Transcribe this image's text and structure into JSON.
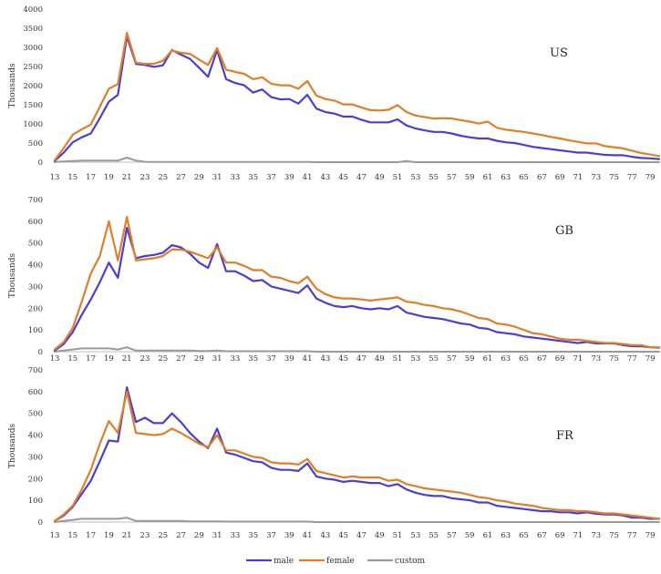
{
  "colors": {
    "male": "#4b3fcf",
    "female": "#e07f28",
    "custom": "#9a9a9a",
    "axis": "#bdbdbd"
  },
  "legend": {
    "placement": "bottom-center",
    "items": [
      {
        "key": "male",
        "label": "male"
      },
      {
        "key": "female",
        "label": "female"
      },
      {
        "key": "custom",
        "label": "custom"
      }
    ]
  },
  "chart_data": [
    {
      "type": "line",
      "panel_label": "US",
      "ylabel": "Thousands",
      "ylim": [
        0,
        4000
      ],
      "yticks": [
        0,
        500,
        1000,
        1500,
        2000,
        2500,
        3000,
        3500,
        4000
      ],
      "x": [
        13,
        14,
        15,
        16,
        17,
        18,
        19,
        20,
        21,
        22,
        23,
        24,
        25,
        26,
        27,
        28,
        29,
        30,
        31,
        32,
        33,
        34,
        35,
        36,
        37,
        38,
        39,
        40,
        41,
        42,
        43,
        44,
        45,
        46,
        47,
        48,
        49,
        50,
        51,
        52,
        53,
        54,
        55,
        56,
        57,
        58,
        59,
        60,
        61,
        62,
        63,
        64,
        65,
        66,
        67,
        68,
        69,
        70,
        71,
        72,
        73,
        74,
        75,
        76,
        77,
        78,
        79,
        80
      ],
      "xticklabels": [
        "13",
        "15",
        "17",
        "19",
        "21",
        "23",
        "25",
        "27",
        "29",
        "31",
        "33",
        "35",
        "37",
        "39",
        "41",
        "43",
        "45",
        "47",
        "49",
        "51",
        "53",
        "55",
        "57",
        "59",
        "61",
        "63",
        "65",
        "67",
        "69",
        "71",
        "73",
        "75",
        "77",
        "79"
      ],
      "series": [
        {
          "name": "male",
          "values": [
            30,
            250,
            520,
            650,
            750,
            1150,
            1580,
            1760,
            3280,
            2570,
            2540,
            2490,
            2530,
            2930,
            2810,
            2700,
            2470,
            2230,
            2930,
            2170,
            2070,
            2010,
            1820,
            1900,
            1700,
            1640,
            1650,
            1530,
            1760,
            1400,
            1310,
            1270,
            1190,
            1190,
            1110,
            1040,
            1040,
            1040,
            1120,
            960,
            880,
            830,
            790,
            790,
            750,
            690,
            650,
            620,
            620,
            560,
            520,
            500,
            450,
            400,
            370,
            340,
            310,
            280,
            250,
            250,
            220,
            190,
            180,
            180,
            140,
            110,
            100,
            80
          ]
        },
        {
          "name": "female",
          "values": [
            50,
            370,
            720,
            860,
            980,
            1450,
            1920,
            2040,
            3380,
            2600,
            2570,
            2570,
            2650,
            2920,
            2860,
            2830,
            2680,
            2540,
            2980,
            2420,
            2360,
            2310,
            2170,
            2220,
            2050,
            2010,
            2010,
            1920,
            2120,
            1740,
            1650,
            1610,
            1510,
            1510,
            1430,
            1360,
            1350,
            1370,
            1490,
            1310,
            1220,
            1180,
            1140,
            1150,
            1140,
            1100,
            1060,
            1010,
            1060,
            900,
            850,
            820,
            790,
            750,
            710,
            660,
            620,
            570,
            530,
            490,
            490,
            420,
            390,
            360,
            300,
            240,
            200,
            160
          ]
        },
        {
          "name": "custom",
          "values": [
            5,
            20,
            30,
            40,
            40,
            40,
            40,
            40,
            120,
            40,
            10,
            5,
            5,
            5,
            5,
            5,
            5,
            5,
            5,
            5,
            5,
            5,
            5,
            5,
            5,
            5,
            5,
            5,
            5,
            0,
            0,
            0,
            0,
            0,
            0,
            0,
            0,
            0,
            0,
            30,
            0,
            0,
            0,
            0,
            0,
            0,
            0,
            0,
            0,
            0,
            0,
            0,
            0,
            0,
            0,
            0,
            0,
            0,
            0,
            0,
            0,
            0,
            0,
            0,
            0,
            0,
            0,
            0
          ]
        }
      ]
    },
    {
      "type": "line",
      "panel_label": "GB",
      "ylabel": "Thousands",
      "ylim": [
        0,
        700
      ],
      "yticks": [
        0,
        100,
        200,
        300,
        400,
        500,
        600,
        700
      ],
      "x": [
        13,
        14,
        15,
        16,
        17,
        18,
        19,
        20,
        21,
        22,
        23,
        24,
        25,
        26,
        27,
        28,
        29,
        30,
        31,
        32,
        33,
        34,
        35,
        36,
        37,
        38,
        39,
        40,
        41,
        42,
        43,
        44,
        45,
        46,
        47,
        48,
        49,
        50,
        51,
        52,
        53,
        54,
        55,
        56,
        57,
        58,
        59,
        60,
        61,
        62,
        63,
        64,
        65,
        66,
        67,
        68,
        69,
        70,
        71,
        72,
        73,
        74,
        75,
        76,
        77,
        78,
        79,
        80
      ],
      "xticklabels": [
        "13",
        "15",
        "17",
        "19",
        "21",
        "23",
        "25",
        "27",
        "29",
        "31",
        "33",
        "35",
        "37",
        "39",
        "41",
        "43",
        "45",
        "47",
        "49",
        "51",
        "53",
        "55",
        "57",
        "59",
        "61",
        "63",
        "65",
        "67",
        "69",
        "71",
        "73",
        "75",
        "77",
        "79"
      ],
      "series": [
        {
          "name": "male",
          "values": [
            5,
            35,
            90,
            170,
            240,
            320,
            410,
            340,
            570,
            430,
            440,
            445,
            455,
            490,
            480,
            450,
            410,
            385,
            495,
            370,
            370,
            350,
            325,
            330,
            300,
            290,
            280,
            270,
            305,
            245,
            225,
            210,
            205,
            210,
            200,
            195,
            200,
            195,
            210,
            180,
            170,
            160,
            155,
            150,
            140,
            130,
            125,
            110,
            105,
            90,
            85,
            80,
            70,
            65,
            60,
            55,
            50,
            45,
            40,
            45,
            38,
            38,
            38,
            30,
            25,
            25,
            20,
            18
          ]
        },
        {
          "name": "female",
          "values": [
            10,
            45,
            110,
            230,
            360,
            440,
            600,
            420,
            620,
            420,
            425,
            430,
            440,
            470,
            470,
            460,
            445,
            430,
            480,
            410,
            410,
            395,
            375,
            375,
            345,
            340,
            325,
            315,
            345,
            290,
            265,
            250,
            245,
            245,
            240,
            235,
            240,
            245,
            250,
            230,
            225,
            215,
            210,
            200,
            195,
            185,
            170,
            155,
            150,
            130,
            125,
            115,
            100,
            85,
            80,
            70,
            60,
            55,
            55,
            50,
            45,
            40,
            40,
            35,
            30,
            30,
            20,
            20
          ]
        },
        {
          "name": "custom",
          "values": [
            0,
            5,
            10,
            15,
            15,
            15,
            15,
            10,
            20,
            5,
            5,
            5,
            5,
            5,
            5,
            5,
            3,
            3,
            5,
            2,
            2,
            2,
            2,
            2,
            2,
            2,
            2,
            2,
            2,
            0,
            0,
            0,
            0,
            0,
            0,
            0,
            0,
            0,
            0,
            0,
            0,
            0,
            0,
            0,
            0,
            0,
            0,
            0,
            0,
            0,
            0,
            0,
            0,
            0,
            0,
            0,
            0,
            0,
            0,
            0,
            0,
            0,
            0,
            0,
            0,
            0,
            0,
            0
          ]
        }
      ]
    },
    {
      "type": "line",
      "panel_label": "FR",
      "ylabel": "Thousands",
      "ylim": [
        0,
        700
      ],
      "yticks": [
        0,
        100,
        200,
        300,
        400,
        500,
        600,
        700
      ],
      "x": [
        13,
        14,
        15,
        16,
        17,
        18,
        19,
        20,
        21,
        22,
        23,
        24,
        25,
        26,
        27,
        28,
        29,
        30,
        31,
        32,
        33,
        34,
        35,
        36,
        37,
        38,
        39,
        40,
        41,
        42,
        43,
        44,
        45,
        46,
        47,
        48,
        49,
        50,
        51,
        52,
        53,
        54,
        55,
        56,
        57,
        58,
        59,
        60,
        61,
        62,
        63,
        64,
        65,
        66,
        67,
        68,
        69,
        70,
        71,
        72,
        73,
        74,
        75,
        76,
        77,
        78,
        79,
        80
      ],
      "xticklabels": [
        "13",
        "15",
        "17",
        "19",
        "21",
        "23",
        "25",
        "27",
        "29",
        "31",
        "33",
        "35",
        "37",
        "39",
        "41",
        "43",
        "45",
        "47",
        "49",
        "51",
        "53",
        "55",
        "57",
        "59",
        "61",
        "63",
        "65",
        "67",
        "69",
        "71",
        "73",
        "75",
        "77",
        "79"
      ],
      "series": [
        {
          "name": "male",
          "values": [
            5,
            30,
            70,
            130,
            190,
            280,
            375,
            370,
            620,
            460,
            480,
            455,
            455,
            500,
            460,
            410,
            370,
            340,
            430,
            320,
            310,
            295,
            280,
            275,
            250,
            240,
            240,
            235,
            270,
            210,
            200,
            195,
            185,
            190,
            185,
            180,
            180,
            165,
            175,
            150,
            135,
            125,
            120,
            120,
            110,
            105,
            100,
            90,
            90,
            75,
            70,
            65,
            60,
            55,
            50,
            50,
            45,
            45,
            40,
            45,
            38,
            35,
            35,
            30,
            20,
            20,
            15,
            15
          ]
        },
        {
          "name": "female",
          "values": [
            5,
            35,
            75,
            150,
            240,
            360,
            465,
            410,
            600,
            410,
            405,
            400,
            405,
            430,
            410,
            385,
            360,
            345,
            400,
            330,
            330,
            315,
            300,
            295,
            275,
            270,
            270,
            265,
            290,
            235,
            225,
            215,
            205,
            210,
            205,
            205,
            205,
            190,
            195,
            175,
            165,
            155,
            150,
            145,
            140,
            135,
            125,
            115,
            110,
            100,
            95,
            85,
            80,
            75,
            65,
            60,
            55,
            55,
            50,
            50,
            45,
            40,
            40,
            35,
            30,
            25,
            20,
            15
          ]
        },
        {
          "name": "custom",
          "values": [
            0,
            5,
            10,
            15,
            15,
            15,
            15,
            15,
            20,
            5,
            5,
            5,
            5,
            5,
            5,
            3,
            3,
            3,
            3,
            2,
            2,
            2,
            2,
            2,
            2,
            2,
            2,
            2,
            2,
            0,
            0,
            0,
            0,
            0,
            0,
            0,
            0,
            0,
            0,
            0,
            0,
            0,
            0,
            0,
            0,
            0,
            0,
            0,
            0,
            0,
            0,
            0,
            0,
            0,
            0,
            0,
            0,
            0,
            0,
            0,
            0,
            0,
            0,
            0,
            0,
            0,
            0,
            0
          ]
        }
      ]
    }
  ]
}
